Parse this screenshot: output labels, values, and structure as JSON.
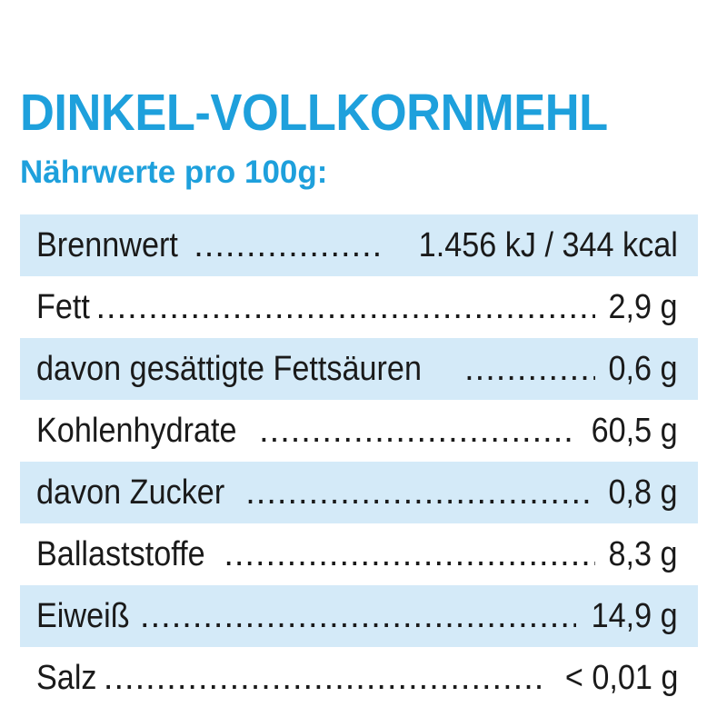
{
  "title": "DINKEL-VOLLKORNMEHL",
  "subtitle": "Nährwerte pro 100g:",
  "colors": {
    "accent": "#1ea0dc",
    "row_highlight": "#d4eaf8",
    "text": "#1a1a1a"
  },
  "rows": [
    {
      "label": "Brennwert",
      "value": "1.456 kJ / 344 kcal"
    },
    {
      "label": "Fett",
      "value": "2,9 g"
    },
    {
      "label": "davon gesättigte Fettsäuren",
      "value": "0,6 g"
    },
    {
      "label": "Kohlenhydrate",
      "value": "60,5 g"
    },
    {
      "label": "davon Zucker",
      "value": "0,8 g"
    },
    {
      "label": "Ballaststoffe",
      "value": "8,3 g"
    },
    {
      "label": "Eiweiß",
      "value": "14,9 g"
    },
    {
      "label": "Salz",
      "value": "< 0,01 g"
    }
  ]
}
